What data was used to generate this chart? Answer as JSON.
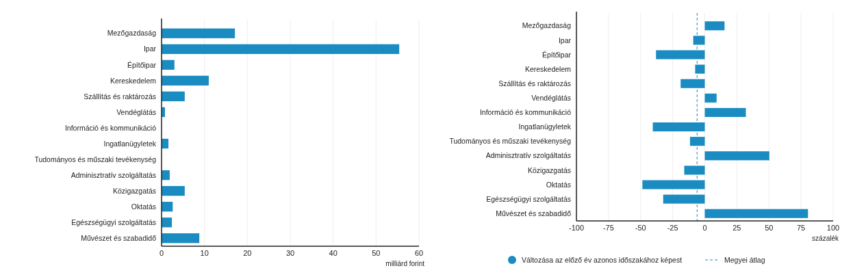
{
  "chart_data": [
    {
      "type": "bar",
      "orientation": "horizontal",
      "categories": [
        "Mezőgazdaság",
        "Ipar",
        "Építőipar",
        "Kereskedelem",
        "Szállítás és raktározás",
        "Vendéglátás",
        "Információ és kommunikáció",
        "Ingatlanügyletek",
        "Tudományos és műszaki tevékenység",
        "Adminisztratív szolgáltatás",
        "Közigazgatás",
        "Oktatás",
        "Egészségügyi szolgáltatás",
        "Művészet és szabadidő"
      ],
      "values": [
        17.1,
        55.4,
        3.0,
        11.0,
        5.4,
        0.8,
        0,
        1.6,
        null,
        1.9,
        5.4,
        2.6,
        2.4,
        8.8
      ],
      "color": "#1a8cc1",
      "xlim": [
        0,
        60
      ],
      "xticks": [
        0,
        10,
        20,
        30,
        40,
        50,
        60
      ],
      "xlabel": "milliárd forint",
      "grid": "x",
      "legend": false
    },
    {
      "type": "bar",
      "orientation": "horizontal",
      "categories": [
        "Mezőgazdaság",
        "Ipar",
        "Építőipar",
        "Kereskedelem",
        "Szállítás és raktározás",
        "Vendéglátás",
        "Információ és kommunikáció",
        "Ingatlanügyletek",
        "Tudományos és műszaki tevékenység",
        "Adminisztratív szolgáltatás",
        "Közigazgatás",
        "Oktatás",
        "Egészségügyi szolgáltatás",
        "Művészet és szabadidő"
      ],
      "series": [
        {
          "name": "Változása az előző év azonos időszakához képest",
          "color": "#1a8cc1",
          "values": [
            15.4,
            -9.0,
            -38,
            -7.5,
            -18.8,
            9.2,
            32,
            -40.5,
            -11.5,
            50.3,
            -16,
            -48.6,
            -32.4,
            80.4
          ]
        }
      ],
      "xlim": [
        -100,
        100
      ],
      "xticks": [
        -100,
        -75,
        -50,
        -25,
        0,
        25,
        50,
        75,
        100
      ],
      "xlabel": "százalék",
      "grid": "x",
      "legend": "bottom",
      "ref_lines": [
        {
          "axis": "x",
          "value": -6,
          "label": "Megyei átlag",
          "color": "#1a8cc1",
          "line_style": "dashed"
        }
      ]
    }
  ]
}
